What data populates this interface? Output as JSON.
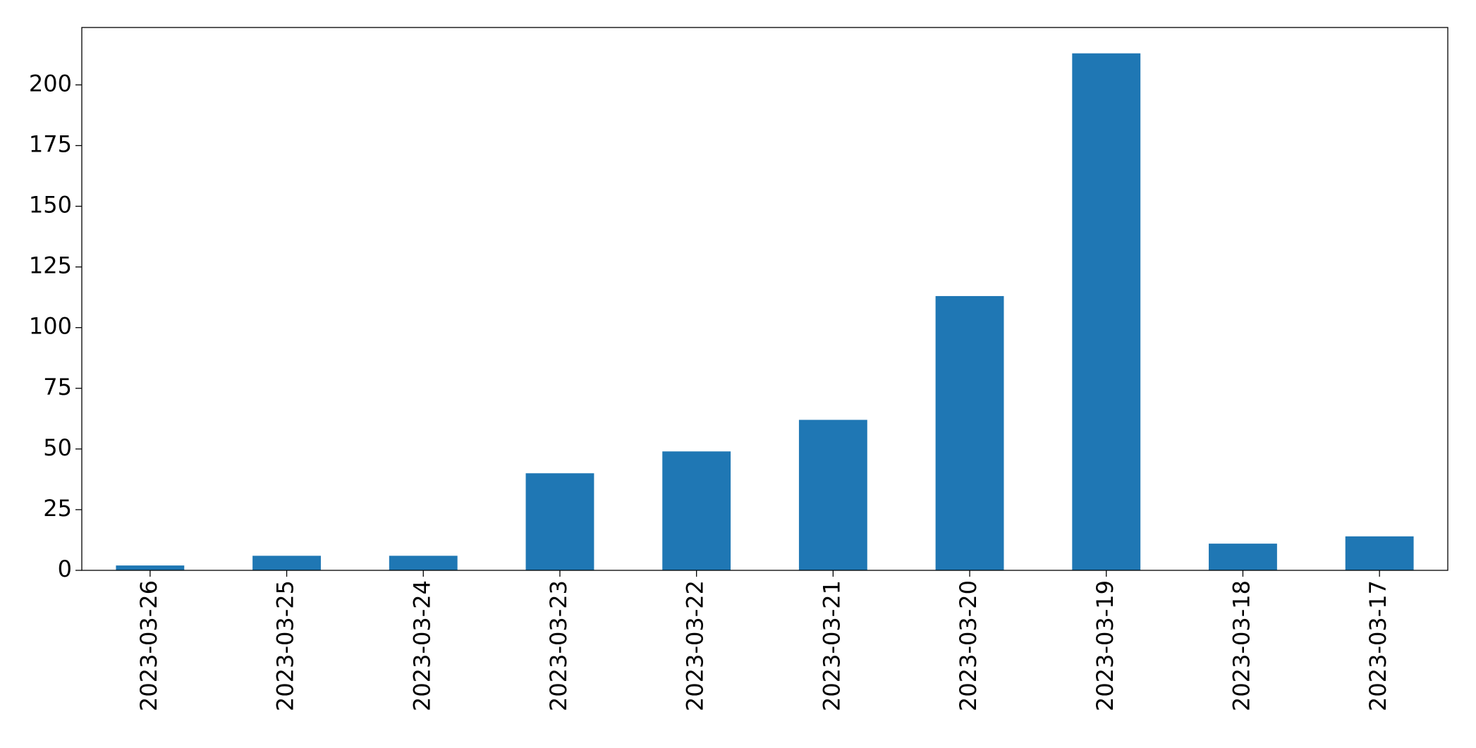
{
  "chart_data": {
    "type": "bar",
    "categories": [
      "2023-03-26",
      "2023-03-25",
      "2023-03-24",
      "2023-03-23",
      "2023-03-22",
      "2023-03-21",
      "2023-03-20",
      "2023-03-19",
      "2023-03-18",
      "2023-03-17"
    ],
    "values": [
      2,
      6,
      6,
      40,
      49,
      62,
      113,
      213,
      11,
      14
    ],
    "color": "#1f77b4",
    "ylim": [
      0,
      223.65
    ],
    "yticks": [
      0,
      25,
      50,
      75,
      100,
      125,
      150,
      175,
      200
    ],
    "grid": false
  }
}
